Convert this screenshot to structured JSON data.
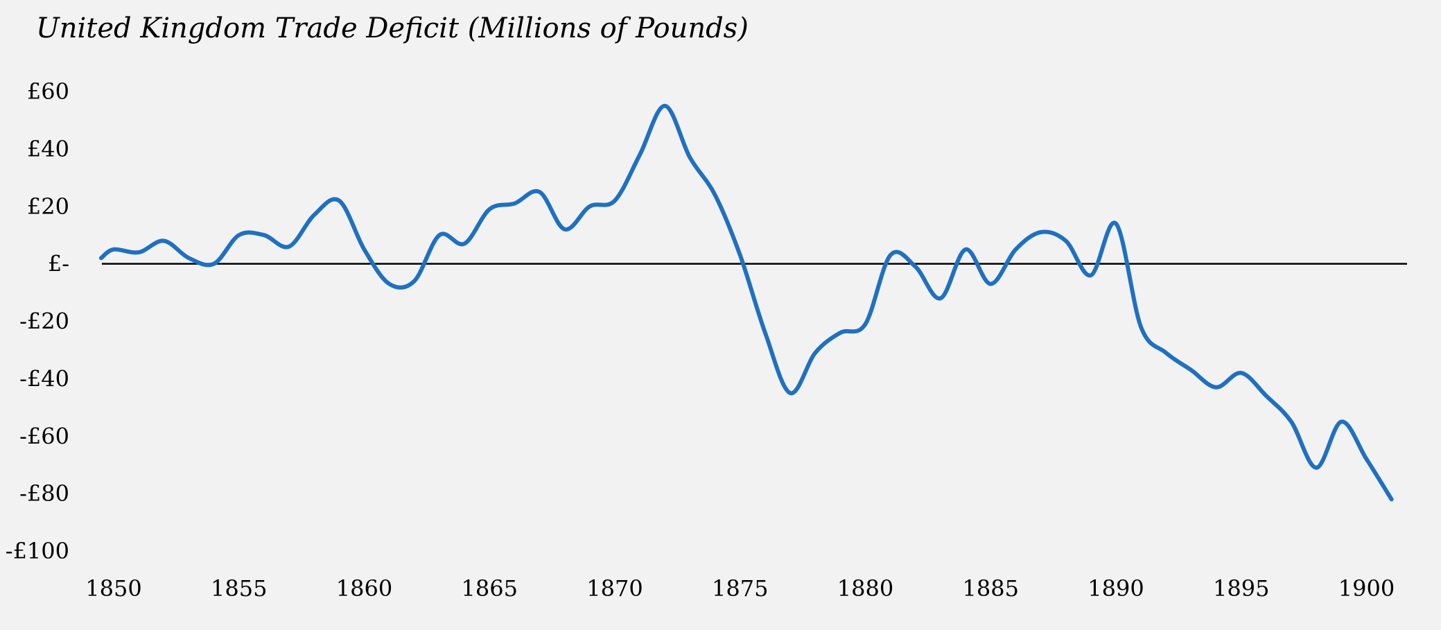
{
  "chart_data": {
    "type": "line",
    "title": "United Kingdom Trade Deficit (Millions of Pounds)",
    "xlabel": "",
    "ylabel": "",
    "xlim": [
      1850,
      1901
    ],
    "ylim": [
      -100,
      60
    ],
    "x_ticks": [
      1850,
      1855,
      1860,
      1865,
      1870,
      1875,
      1880,
      1885,
      1890,
      1895,
      1900
    ],
    "y_ticks": [
      60,
      40,
      20,
      0,
      -20,
      -40,
      -60,
      -80,
      -100
    ],
    "y_tick_labels": [
      "£60",
      "£40",
      "£20",
      "£-",
      "-£20",
      "-£40",
      "-£60",
      "-£80",
      "-£100"
    ],
    "grid": false,
    "zero_line": true,
    "legend": "none",
    "series": [
      {
        "color": "#1f70c1",
        "x": [
          1849.5,
          1850,
          1851,
          1852,
          1853,
          1854,
          1855,
          1856,
          1857,
          1858,
          1859,
          1860,
          1861,
          1862,
          1863,
          1864,
          1865,
          1866,
          1867,
          1868,
          1869,
          1870,
          1871,
          1872,
          1873,
          1874,
          1875,
          1876,
          1877,
          1878,
          1879,
          1880,
          1881,
          1882,
          1883,
          1884,
          1885,
          1886,
          1887,
          1888,
          1889,
          1890,
          1891,
          1892,
          1893,
          1894,
          1895,
          1896,
          1897,
          1898,
          1899,
          1900,
          1901
        ],
        "values": [
          2,
          5,
          4,
          8,
          2,
          0,
          10,
          10,
          6,
          17,
          22,
          5,
          -7,
          -6,
          10,
          7,
          19,
          21,
          25,
          12,
          20,
          22,
          38,
          55,
          37,
          24,
          3,
          -24,
          -45,
          -31,
          -24,
          -21,
          3,
          -1,
          -12,
          5,
          -7,
          5,
          11,
          8,
          -4,
          14,
          -22,
          -31,
          -37,
          -43,
          -38,
          -46,
          -55,
          -71,
          -55,
          -68,
          -82
        ]
      }
    ]
  }
}
